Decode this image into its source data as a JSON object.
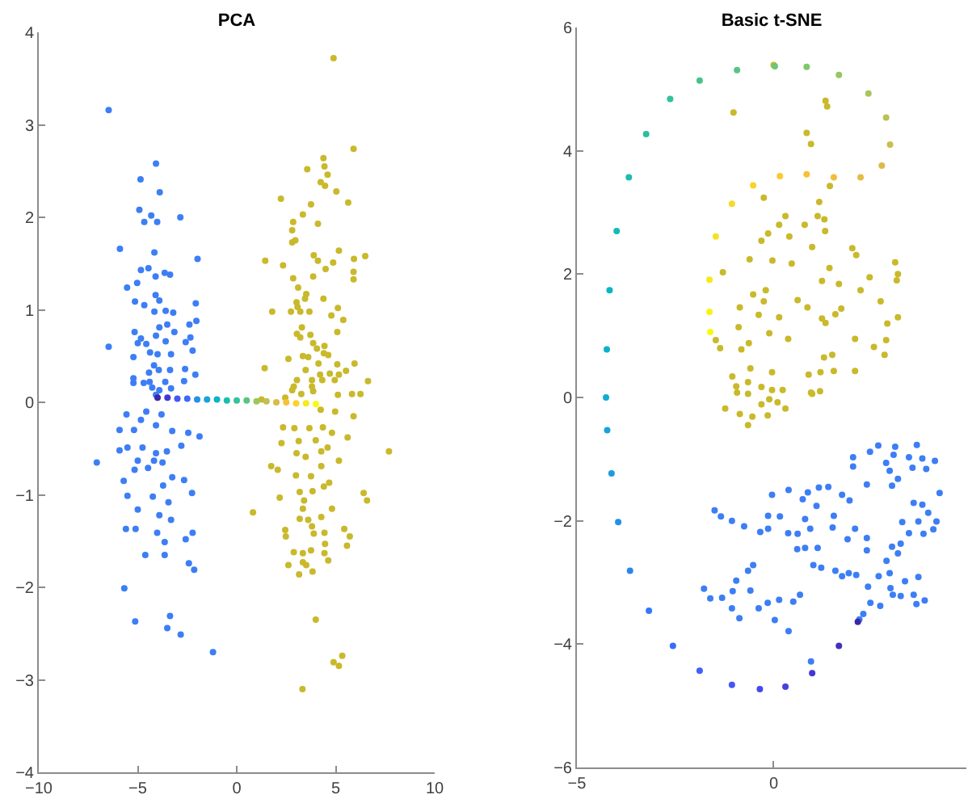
{
  "chart_data": [
    {
      "type": "scatter",
      "title": "PCA",
      "xlim": [
        -10,
        10
      ],
      "ylim": [
        -4,
        4
      ],
      "xticks": [
        -10,
        -5,
        0,
        5,
        10
      ],
      "yticks": [
        -4,
        -3,
        -2,
        -1,
        0,
        1,
        2,
        3,
        4
      ],
      "marker": "circle",
      "series": [
        {
          "color": "#3d7ef5",
          "x": [
            -6.47,
            -4.08,
            -4.86,
            -3.89,
            -4.92,
            -4.32,
            -4.67,
            -4.02,
            -2.85,
            -5.9,
            -4.16,
            -1.98,
            -5.54,
            -5.03,
            -4.84,
            -4.46,
            -3.64,
            -3.37,
            -4.1,
            -4.1,
            -3.91,
            -5.14,
            -4.67,
            -2.07,
            -4.16,
            -3.59,
            -3.21,
            -6.47,
            -5.16,
            -4.84,
            -3.91,
            -3.51,
            -3.15,
            -2.39,
            -2.04,
            -2.34,
            -5.0,
            -4.57,
            -4.08,
            -3.59,
            -2.58,
            -4.38,
            -4.0,
            -3.32,
            -2.23,
            -5.22,
            -4.18,
            -4.43,
            -3.94,
            -3.37,
            -2.61,
            -2.09,
            -5.22,
            -5.22,
            -4.7,
            -4.4,
            -3.61,
            -2.66,
            -4.27,
            -3.91,
            -3.32,
            -4.08,
            -5.57,
            -5.92,
            -5.19,
            -4.84,
            -4.57,
            -4.08,
            -3.8,
            -3.26,
            -2.45,
            -1.88,
            -7.07,
            -5.92,
            -5.52,
            -4.76,
            -4.08,
            -3.53,
            -2.8,
            -5.0,
            -4.18,
            -5.71,
            -5.16,
            -4.48,
            -3.75,
            -3.72,
            -3.26,
            -2.66,
            -5.52,
            -4.24,
            -3.45,
            -2.26,
            -5.0,
            -3.91,
            -3.32,
            -5.6,
            -5.11,
            -4.02,
            -3.64,
            -2.58,
            -2.23,
            -4.62,
            -3.64,
            -2.42,
            -2.15,
            -5.68,
            -5.13,
            -3.37,
            -3.51,
            -2.83,
            -1.2
          ],
          "values": [
            3.16,
            2.58,
            2.41,
            2.27,
            2.08,
            2.02,
            1.95,
            1.95,
            2.0,
            1.66,
            1.62,
            1.55,
            1.24,
            1.29,
            1.43,
            1.45,
            1.4,
            1.38,
            1.36,
            1.16,
            1.1,
            1.09,
            1.05,
            1.07,
            0.98,
            0.99,
            0.97,
            0.6,
            0.76,
            0.69,
            0.81,
            0.84,
            0.76,
            0.84,
            0.88,
            0.7,
            0.64,
            0.63,
            0.72,
            0.66,
            0.65,
            0.54,
            0.52,
            0.52,
            0.56,
            0.49,
            0.4,
            0.32,
            0.35,
            0.35,
            0.36,
            0.3,
            0.26,
            0.21,
            0.21,
            0.22,
            0.22,
            0.23,
            0.16,
            0.13,
            0.15,
            0.08,
            -0.13,
            -0.3,
            -0.3,
            -0.19,
            -0.1,
            -0.25,
            -0.13,
            -0.31,
            -0.33,
            -0.37,
            -0.65,
            -0.52,
            -0.49,
            -0.49,
            -0.55,
            -0.53,
            -0.47,
            -0.63,
            -0.63,
            -0.85,
            -0.73,
            -0.71,
            -0.65,
            -0.9,
            -0.81,
            -0.84,
            -1.01,
            -1.02,
            -1.08,
            -0.98,
            -1.16,
            -1.22,
            -1.27,
            -1.37,
            -1.37,
            -1.41,
            -1.51,
            -1.48,
            -1.41,
            -1.65,
            -1.65,
            -1.74,
            -1.81,
            -2.01,
            -2.37,
            -2.31,
            -2.44,
            -2.51,
            -2.7
          ]
        },
        {
          "color": "#c9b92b",
          "x": [
            4.89,
            5.9,
            4.38,
            4.43,
            3.56,
            4.59,
            4.24,
            4.46,
            5.03,
            2.23,
            3.75,
            5.63,
            3.34,
            2.85,
            4.1,
            2.8,
            2.96,
            2.8,
            5.16,
            3.89,
            1.44,
            4.1,
            5.92,
            6.49,
            2.34,
            4.87,
            4.49,
            5.9,
            3.86,
            2.85,
            5.9,
            3.1,
            3.51,
            3.45,
            4.38,
            3.02,
            3.07,
            5.11,
            1.79,
            2.74,
            3.21,
            3.67,
            4.78,
            5.38,
            3.29,
            3.04,
            3.72,
            3.21,
            5.08,
            3.86,
            4.43,
            4.05,
            2.61,
            3.34,
            3.61,
            4.4,
            4.62,
            4.13,
            5.08,
            5.95,
            5.52,
            1.41,
            3.48,
            4.21,
            4.7,
            5.16,
            3.04,
            3.8,
            4.32,
            4.95,
            6.63,
            2.88,
            3.8,
            2.8,
            3.26,
            3.86,
            5.82,
            1.25,
            2.45,
            6.25,
            5.11,
            4.24,
            4.97,
            5.9,
            2.34,
            2.91,
            3.67,
            4.35,
            4.81,
            5.6,
            2.26,
            3.13,
            3.99,
            3.02,
            3.48,
            4.27,
            4.59,
            7.69,
            5.16,
            1.74,
            2.07,
            2.99,
            3.75,
            4.27,
            4.67,
            3.83,
            3.18,
            4.4,
            6.41,
            6.58,
            2.17,
            3.4,
            0.82,
            4.81,
            3.34,
            3.18,
            4.27,
            3.61,
            2.45,
            3.8,
            4.43,
            5.43,
            5.71,
            2.48,
            3.89,
            4.46,
            5.57,
            2.88,
            3.34,
            3.75,
            4.43,
            3.34,
            2.61,
            3.51,
            4.62,
            3.83,
            3.15,
            3.99,
            5.33,
            4.89,
            5.16,
            3.32
          ],
          "values": [
            3.72,
            2.74,
            2.64,
            2.55,
            2.52,
            2.46,
            2.38,
            2.34,
            2.28,
            2.2,
            2.14,
            2.16,
            2.03,
            1.95,
            1.93,
            1.86,
            1.75,
            1.73,
            1.64,
            1.59,
            1.53,
            1.53,
            1.55,
            1.58,
            1.48,
            1.51,
            1.44,
            1.41,
            1.36,
            1.34,
            1.33,
            1.24,
            1.17,
            1.12,
            1.12,
            1.08,
            1.03,
            1.02,
            0.98,
            0.98,
            0.98,
            0.98,
            0.94,
            0.89,
            0.81,
            0.74,
            0.73,
            0.7,
            0.76,
            0.64,
            0.61,
            0.58,
            0.47,
            0.5,
            0.49,
            0.53,
            0.51,
            0.42,
            0.41,
            0.42,
            0.34,
            0.37,
            0.35,
            0.3,
            0.31,
            0.3,
            0.24,
            0.24,
            0.24,
            0.24,
            0.23,
            0.17,
            0.17,
            0.13,
            0.09,
            0.12,
            0.09,
            0.03,
            0.05,
            0.09,
            0.08,
            -0.08,
            -0.1,
            -0.15,
            -0.27,
            -0.28,
            -0.28,
            -0.27,
            -0.33,
            -0.38,
            -0.44,
            -0.42,
            -0.41,
            -0.55,
            -0.59,
            -0.53,
            -0.49,
            -0.53,
            -0.63,
            -0.69,
            -0.73,
            -0.79,
            -0.8,
            -0.69,
            -0.87,
            -0.96,
            -0.97,
            -0.91,
            -0.98,
            -1.06,
            -1.03,
            -1.06,
            -1.19,
            -1.15,
            -1.15,
            -1.26,
            -1.24,
            -1.27,
            -1.38,
            -1.34,
            -1.41,
            -1.37,
            -1.45,
            -1.45,
            -1.42,
            -1.53,
            -1.55,
            -1.62,
            -1.63,
            -1.6,
            -1.63,
            -1.73,
            -1.76,
            -1.76,
            -1.71,
            -1.83,
            -1.86,
            -2.35,
            -2.74,
            -2.81,
            -2.85,
            -3.1
          ]
        },
        {
          "colors": [
            "#3e26a8",
            "#4436d6",
            "#4555f6",
            "#3a6cfb",
            "#2490e8",
            "#18a3da",
            "#0cb2ca",
            "#1bbdae",
            "#33c29a",
            "#55c680",
            "#96c760",
            "#bcc152",
            "#dabb47",
            "#f9c036",
            "#fad22b",
            "#f5ea1b",
            "#f9fb0e"
          ],
          "x": [
            -4,
            -3.5,
            -3,
            -2.5,
            -2,
            -1.5,
            -1,
            -0.5,
            0,
            0.5,
            1,
            1.5,
            2,
            2.5,
            3,
            3.5,
            4
          ],
          "values": [
            0.05,
            0.05,
            0.04,
            0.04,
            0.03,
            0.03,
            0.03,
            0.02,
            0.02,
            0.02,
            0.01,
            0.01,
            0,
            0,
            -0.01,
            -0.01,
            -0.02
          ]
        }
      ]
    },
    {
      "type": "scatter",
      "title": "Basic t-SNE",
      "xlim": [
        -5,
        4.9
      ],
      "ylim": [
        -6,
        6
      ],
      "xticks": [
        -5,
        0
      ],
      "yticks": [
        -6,
        -4,
        -2,
        0,
        2,
        4,
        6
      ],
      "marker": "circle",
      "series": [
        {
          "color": "#c9b92b",
          "x": [
            0.0,
            -1.02,
            1.32,
            1.36,
            0.84,
            0.95,
            1.43,
            -0.25,
            1.16,
            0.3,
            0.14,
            0.79,
            1.12,
            1.29,
            -0.14,
            0.4,
            -0.31,
            1.31,
            2.0,
            2.1,
            0.98,
            -0.61,
            -0.03,
            0.46,
            -1.29,
            1.42,
            2.44,
            3.09,
            3.16,
            3.13,
            1.23,
            1.66,
            -0.2,
            -0.52,
            -0.25,
            0.61,
            2.21,
            2.72,
            -0.86,
            -0.38,
            0.14,
            0.86,
            1.23,
            1.57,
            1.72,
            3.16,
            -0.89,
            -0.11,
            0.37,
            1.32,
            2.07,
            2.89,
            2.86,
            -1.47,
            -1.36,
            -0.82,
            -0.63,
            2.55,
            2.82,
            1.28,
            1.49,
            0.89,
            1.19,
            1.53,
            2.07,
            -1.05,
            -0.59,
            -0.04,
            -0.95,
            -0.65,
            -0.31,
            -0.04,
            0.23,
            0.98,
            -1.23,
            -0.93,
            -0.65,
            -0.54,
            -0.86,
            -0.31,
            -0.11,
            0.1,
            0.3,
            -0.15,
            0.95,
            1.18,
            -0.65
          ],
          "values": [
            5.39,
            4.62,
            4.81,
            4.72,
            4.29,
            4.11,
            3.43,
            3.24,
            3.17,
            2.94,
            2.8,
            2.8,
            2.94,
            2.89,
            2.66,
            2.61,
            2.54,
            2.7,
            2.42,
            2.31,
            2.44,
            2.24,
            2.22,
            2.17,
            2.03,
            2.1,
            1.95,
            2.19,
            2.0,
            1.9,
            1.89,
            1.84,
            1.74,
            1.67,
            1.56,
            1.58,
            1.74,
            1.56,
            1.46,
            1.34,
            1.3,
            1.46,
            1.28,
            1.35,
            1.44,
            1.3,
            1.14,
            1.04,
            0.95,
            1.21,
            0.95,
            1.2,
            0.93,
            0.93,
            0.8,
            0.78,
            0.88,
            0.82,
            0.69,
            0.65,
            0.69,
            0.37,
            0.41,
            0.43,
            0.43,
            0.34,
            0.47,
            0.41,
            0.18,
            0.25,
            0.17,
            0.12,
            0.12,
            0.06,
            -0.18,
            0.08,
            0.06,
            -0.31,
            -0.27,
            -0.11,
            -0.03,
            -0.08,
            -0.18,
            -0.29,
            0.08,
            0.1,
            -0.45
          ]
        },
        {
          "color": "#3d7ef5",
          "x": [
            -1.5,
            -1.34,
            -1.06,
            -0.75,
            -1.77,
            -1.61,
            -1.31,
            -1.04,
            -0.95,
            -0.65,
            -0.52,
            -0.59,
            -1.06,
            -0.87,
            -0.38,
            -0.15,
            0.03,
            0.14,
            0.38,
            0.5,
            0.67,
            0.95,
            -0.34,
            -0.14,
            -0.04,
            -0.14,
            0.16,
            0.38,
            0.37,
            0.61,
            0.6,
            0.8,
            0.8,
            0.74,
            0.87,
            1.09,
            1.15,
            1.39,
            0.93,
            1.12,
            1.01,
            1.21,
            1.53,
            1.5,
            1.57,
            1.74,
            1.91,
            2.1,
            1.74,
            1.93,
            1.88,
            2.07,
            2.37,
            2.37,
            2.37,
            2.02,
            2.02,
            2.45,
            2.66,
            2.4,
            2.67,
            2.46,
            2.71,
            2.87,
            3.01,
            3.23,
            3.16,
            2.95,
            2.97,
            3.03,
            3.23,
            3.34,
            3.44,
            3.27,
            3.01,
            3.16,
            2.86,
            3.05,
            3.09,
            2.95,
            3.44,
            3.64,
            3.53,
            3.78,
            4.1,
            3.88,
            3.56,
            3.78,
            3.68,
            3.93,
            4.14,
            4.22,
            3.81,
            4.06,
            3.56,
            3.63,
            3.84,
            3.68,
            2.28,
            2.18
          ],
          "values": [
            -1.83,
            -1.93,
            -2.0,
            -2.09,
            -3.1,
            -3.26,
            -3.25,
            -3.14,
            -2.97,
            -2.81,
            -2.72,
            -3.13,
            -3.42,
            -3.58,
            -3.42,
            -3.33,
            -3.61,
            -3.28,
            -3.79,
            -3.31,
            -3.2,
            -4.28,
            -2.18,
            -2.13,
            -1.58,
            -1.92,
            -1.93,
            -1.5,
            -2.2,
            -2.21,
            -2.46,
            -2.44,
            -1.97,
            -1.65,
            -1.54,
            -1.76,
            -1.46,
            -1.45,
            -2.13,
            -2.44,
            -2.72,
            -2.76,
            -1.92,
            -2.11,
            -2.81,
            -2.9,
            -2.85,
            -2.88,
            -1.58,
            -1.67,
            -2.3,
            -2.13,
            -2.48,
            -2.28,
            -1.41,
            -0.97,
            -1.12,
            -0.88,
            -0.78,
            -3.07,
            -2.9,
            -3.33,
            -3.38,
            -2.65,
            -2.42,
            -2.37,
            -2.53,
            -2.85,
            -3.09,
            -3.2,
            -3.22,
            -2.98,
            -2.2,
            -2.02,
            -1.43,
            -1.32,
            -1.06,
            -0.93,
            -0.8,
            -1.19,
            -0.97,
            -0.77,
            -1.14,
            -0.99,
            -1.03,
            -1.16,
            -1.71,
            -1.74,
            -2.01,
            -1.87,
            -2.01,
            -1.55,
            -2.21,
            -2.14,
            -3.2,
            -3.35,
            -3.29,
            -2.91,
            -3.51,
            -3.6
          ]
        },
        {
          "colors": [
            "#3e26a8",
            "#4130c0",
            "#4436d6",
            "#453fe2",
            "#4649ee",
            "#4555f6",
            "#4260fa",
            "#3a6cfb",
            "#3378f8",
            "#2b85f0",
            "#2490e8",
            "#1f9ae0",
            "#18a3da",
            "#12abd3",
            "#0cb2ca",
            "#09b6c2",
            "#13bab8",
            "#1bbdae",
            "#27c0a3",
            "#33c29a",
            "#45c48b",
            "#55c680",
            "#6ac775",
            "#80c86a",
            "#96c760",
            "#aac45a",
            "#bcc152",
            "#cbbe4a",
            "#dabb47",
            "#e6bb43",
            "#f2bc3d",
            "#f9c036",
            "#fcc930",
            "#fad22b",
            "#f6da26",
            "#f4e221",
            "#f5ea1b",
            "#f7f314",
            "#f9fb0e"
          ],
          "x": [
            2.14,
            1.66,
            0.98,
            0.3,
            -0.35,
            -1.06,
            -1.88,
            -2.56,
            -3.17,
            -3.65,
            -3.95,
            -4.12,
            -4.23,
            -4.26,
            -4.24,
            -4.17,
            -3.99,
            -3.68,
            -3.24,
            -2.63,
            -1.88,
            -0.93,
            0.03,
            0.84,
            1.66,
            2.41,
            2.86,
            2.96,
            2.75,
            2.21,
            1.53,
            0.84,
            0.16,
            -0.52,
            -1.06,
            -1.47,
            -1.63,
            -1.63,
            -1.61
          ],
          "values": [
            -3.64,
            -4.03,
            -4.47,
            -4.69,
            -4.73,
            -4.66,
            -4.43,
            -4.03,
            -3.46,
            -2.81,
            -2.02,
            -1.23,
            -0.53,
            0.0,
            0.78,
            1.74,
            2.7,
            3.57,
            4.27,
            4.84,
            5.14,
            5.31,
            5.37,
            5.36,
            5.23,
            4.93,
            4.54,
            4.1,
            3.76,
            3.57,
            3.57,
            3.62,
            3.59,
            3.44,
            3.14,
            2.61,
            1.91,
            1.39,
            1.06
          ]
        }
      ]
    }
  ]
}
